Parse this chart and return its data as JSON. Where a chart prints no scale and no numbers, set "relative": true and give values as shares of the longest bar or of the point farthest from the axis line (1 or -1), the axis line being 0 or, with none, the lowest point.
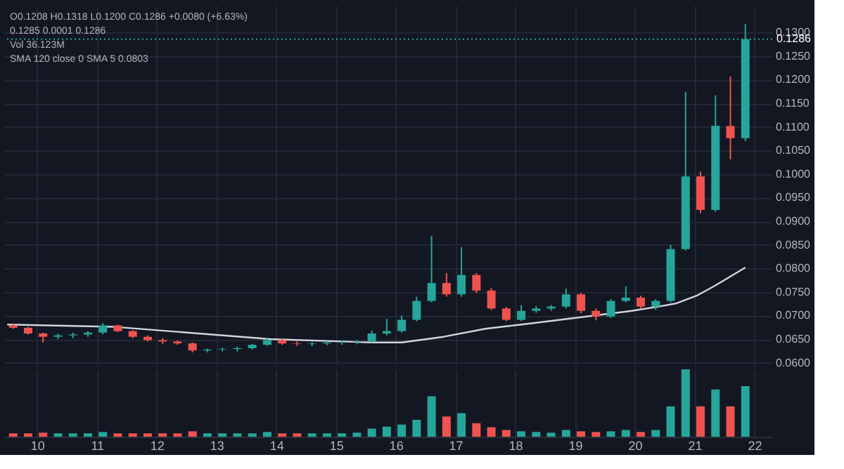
{
  "chart_data": [
    {
      "type": "candlestick",
      "x": [
        9.6,
        9.85,
        10.1,
        10.35,
        10.6,
        10.85,
        11.1,
        11.35,
        11.6,
        11.85,
        12.1,
        12.35,
        12.6,
        12.85,
        13.1,
        13.35,
        13.6,
        13.85,
        14.1,
        14.35,
        14.6,
        14.85,
        15.1,
        15.35,
        15.6,
        15.85,
        16.1,
        16.35,
        16.6,
        16.85,
        17.1,
        17.35,
        17.6,
        17.85,
        18.1,
        18.35,
        18.6,
        18.85,
        19.1,
        19.35,
        19.6,
        19.85,
        20.1,
        20.35,
        20.6,
        20.85,
        21.1,
        21.35,
        21.6,
        21.85
      ],
      "ohlc": [
        [
          0.0679,
          0.0683,
          0.0672,
          0.0674
        ],
        [
          0.0674,
          0.0676,
          0.066,
          0.0662
        ],
        [
          0.0662,
          0.0664,
          0.0643,
          0.0655
        ],
        [
          0.0655,
          0.0662,
          0.065,
          0.0658
        ],
        [
          0.0658,
          0.0664,
          0.0652,
          0.066
        ],
        [
          0.066,
          0.0667,
          0.0655,
          0.0664
        ],
        [
          0.0664,
          0.0684,
          0.066,
          0.0679
        ],
        [
          0.0679,
          0.0681,
          0.0665,
          0.0667
        ],
        [
          0.0667,
          0.0669,
          0.0652,
          0.0655
        ],
        [
          0.0655,
          0.0658,
          0.0645,
          0.0648
        ],
        [
          0.0648,
          0.0652,
          0.064,
          0.0645
        ],
        [
          0.0645,
          0.0647,
          0.0638,
          0.0641
        ],
        [
          0.0641,
          0.0643,
          0.0622,
          0.0626
        ],
        [
          0.0626,
          0.063,
          0.0622,
          0.0628
        ],
        [
          0.0628,
          0.0632,
          0.0624,
          0.0629
        ],
        [
          0.0629,
          0.0634,
          0.0624,
          0.0631
        ],
        [
          0.0631,
          0.064,
          0.0628,
          0.0638
        ],
        [
          0.0638,
          0.0653,
          0.0636,
          0.0648
        ],
        [
          0.0648,
          0.065,
          0.0638,
          0.0641
        ],
        [
          0.0641,
          0.0645,
          0.0636,
          0.064
        ],
        [
          0.064,
          0.0644,
          0.0635,
          0.0641
        ],
        [
          0.0641,
          0.0646,
          0.0637,
          0.0643
        ],
        [
          0.0643,
          0.0647,
          0.0638,
          0.0644
        ],
        [
          0.0644,
          0.0648,
          0.0639,
          0.0645
        ],
        [
          0.0645,
          0.0668,
          0.0643,
          0.0662
        ],
        [
          0.0662,
          0.0693,
          0.0658,
          0.0667
        ],
        [
          0.0667,
          0.07,
          0.0664,
          0.0691
        ],
        [
          0.0691,
          0.074,
          0.0688,
          0.0731
        ],
        [
          0.0731,
          0.0869,
          0.0728,
          0.0769
        ],
        [
          0.0769,
          0.079,
          0.074,
          0.0745
        ],
        [
          0.0745,
          0.0845,
          0.074,
          0.0786
        ],
        [
          0.0786,
          0.079,
          0.0748,
          0.0753
        ],
        [
          0.0753,
          0.0758,
          0.0712,
          0.0715
        ],
        [
          0.0715,
          0.0718,
          0.0688,
          0.0691
        ],
        [
          0.0691,
          0.0722,
          0.0688,
          0.071
        ],
        [
          0.071,
          0.072,
          0.0706,
          0.0715
        ],
        [
          0.0715,
          0.0722,
          0.071,
          0.0719
        ],
        [
          0.0719,
          0.0757,
          0.0715,
          0.0745
        ],
        [
          0.0745,
          0.0748,
          0.0705,
          0.071
        ],
        [
          0.071,
          0.0715,
          0.069,
          0.0698
        ],
        [
          0.0698,
          0.0735,
          0.0695,
          0.0731
        ],
        [
          0.0731,
          0.0762,
          0.0728,
          0.0738
        ],
        [
          0.0738,
          0.0742,
          0.0715,
          0.0719
        ],
        [
          0.0719,
          0.0735,
          0.0712,
          0.0731
        ],
        [
          0.0731,
          0.085,
          0.0728,
          0.0841
        ],
        [
          0.0841,
          0.1174,
          0.0838,
          0.0995
        ],
        [
          0.0995,
          0.1005,
          0.0917,
          0.0924
        ],
        [
          0.0924,
          0.1167,
          0.092,
          0.1102
        ],
        [
          0.1102,
          0.1207,
          0.1031,
          0.1076
        ],
        [
          0.1076,
          0.1318,
          0.107,
          0.1286
        ]
      ],
      "colors": [
        "#ef5350",
        "#ef5350",
        "#ef5350",
        "#26a69a",
        "#26a69a",
        "#26a69a",
        "#26a69a",
        "#ef5350",
        "#ef5350",
        "#ef5350",
        "#ef5350",
        "#ef5350",
        "#ef5350",
        "#26a69a",
        "#26a69a",
        "#26a69a",
        "#26a69a",
        "#26a69a",
        "#ef5350",
        "#ef5350",
        "#26a69a",
        "#26a69a",
        "#26a69a",
        "#26a69a",
        "#26a69a",
        "#26a69a",
        "#26a69a",
        "#26a69a",
        "#26a69a",
        "#ef5350",
        "#26a69a",
        "#ef5350",
        "#ef5350",
        "#ef5350",
        "#26a69a",
        "#26a69a",
        "#26a69a",
        "#26a69a",
        "#ef5350",
        "#ef5350",
        "#26a69a",
        "#26a69a",
        "#ef5350",
        "#26a69a",
        "#26a69a",
        "#26a69a",
        "#ef5350",
        "#26a69a",
        "#ef5350",
        "#26a69a"
      ],
      "series": [
        {
          "type": "line",
          "color": "#d1d4dc",
          "x": [
            9.5,
            11.3,
            13.9,
            15.6,
            16.1,
            16.8,
            17.5,
            18.3,
            19.2,
            19.95,
            20.4,
            20.7,
            21.05,
            21.35,
            21.85
          ],
          "values": [
            0.0681,
            0.0676,
            0.065,
            0.0643,
            0.0643,
            0.0655,
            0.0672,
            0.0684,
            0.0698,
            0.071,
            0.0719,
            0.0726,
            0.0743,
            0.0764,
            0.0802
          ]
        }
      ],
      "xlim": [
        9.45,
        22.3
      ],
      "xticks": [
        10,
        11,
        12,
        13,
        14,
        15,
        16,
        17,
        18,
        19,
        20,
        21,
        22
      ],
      "ylim": [
        0.0595,
        0.1357
      ],
      "yticks": [
        {
          "value": 0.06,
          "label": "0.0600"
        },
        {
          "value": 0.065,
          "label": "0.0650"
        },
        {
          "value": 0.07,
          "label": "0.0700"
        },
        {
          "value": 0.075,
          "label": "0.0750"
        },
        {
          "value": 0.08,
          "label": "0.0800"
        },
        {
          "value": 0.085,
          "label": "0.0850"
        },
        {
          "value": 0.09,
          "label": "0.0900"
        },
        {
          "value": 0.095,
          "label": "0.0950"
        },
        {
          "value": 0.1,
          "label": "0.1000"
        },
        {
          "value": 0.105,
          "label": "0.1050"
        },
        {
          "value": 0.11,
          "label": "0.1100"
        },
        {
          "value": 0.115,
          "label": "0.1150"
        },
        {
          "value": 0.12,
          "label": "0.1200"
        },
        {
          "value": 0.125,
          "label": "0.1250"
        },
        {
          "value": 0.13,
          "label": "0.1300"
        }
      ],
      "ref_lines": [
        {
          "axis": "y",
          "value": 0.1286,
          "label": "0.1286",
          "color": "#26a69a",
          "line_style": "dotted"
        }
      ],
      "annotations": [
        "O0.1208 H0.1318 L0.1200 C0.1286 +0.0080 (+6.63%)",
        "0.1285  0.0001  0.1286",
        "Vol 36.123M",
        "SMA 120 close 0 SMA 5 0.0803"
      ],
      "grid": true,
      "tick_labels": "y"
    },
    {
      "type": "bar",
      "relative": true,
      "x": [
        9.6,
        9.85,
        10.1,
        10.35,
        10.6,
        10.85,
        11.1,
        11.35,
        11.6,
        11.85,
        12.1,
        12.35,
        12.6,
        12.85,
        13.1,
        13.35,
        13.6,
        13.85,
        14.1,
        14.35,
        14.6,
        14.85,
        15.1,
        15.35,
        15.6,
        15.85,
        16.1,
        16.35,
        16.6,
        16.85,
        17.1,
        17.35,
        17.6,
        17.85,
        18.1,
        18.35,
        18.6,
        18.85,
        19.1,
        19.35,
        19.6,
        19.85,
        20.1,
        20.35,
        20.6,
        20.85,
        21.1,
        21.35,
        21.6,
        21.85
      ],
      "values": [
        0.05,
        0.05,
        0.06,
        0.05,
        0.05,
        0.05,
        0.07,
        0.05,
        0.05,
        0.05,
        0.05,
        0.05,
        0.08,
        0.05,
        0.05,
        0.05,
        0.05,
        0.07,
        0.05,
        0.05,
        0.05,
        0.05,
        0.05,
        0.06,
        0.12,
        0.15,
        0.18,
        0.25,
        0.6,
        0.3,
        0.35,
        0.2,
        0.14,
        0.1,
        0.08,
        0.07,
        0.06,
        0.1,
        0.08,
        0.07,
        0.08,
        0.1,
        0.07,
        0.1,
        0.45,
        1.0,
        0.45,
        0.7,
        0.45,
        0.75
      ],
      "colors": [
        "#ef5350",
        "#ef5350",
        "#ef5350",
        "#26a69a",
        "#26a69a",
        "#26a69a",
        "#26a69a",
        "#ef5350",
        "#ef5350",
        "#ef5350",
        "#ef5350",
        "#ef5350",
        "#ef5350",
        "#26a69a",
        "#26a69a",
        "#26a69a",
        "#26a69a",
        "#26a69a",
        "#ef5350",
        "#ef5350",
        "#26a69a",
        "#26a69a",
        "#26a69a",
        "#26a69a",
        "#26a69a",
        "#26a69a",
        "#26a69a",
        "#26a69a",
        "#26a69a",
        "#ef5350",
        "#26a69a",
        "#ef5350",
        "#ef5350",
        "#ef5350",
        "#26a69a",
        "#26a69a",
        "#26a69a",
        "#26a69a",
        "#ef5350",
        "#ef5350",
        "#26a69a",
        "#26a69a",
        "#ef5350",
        "#26a69a",
        "#26a69a",
        "#26a69a",
        "#ef5350",
        "#26a69a",
        "#ef5350",
        "#26a69a"
      ],
      "xlim": [
        9.45,
        22.3
      ],
      "xticks": [
        10,
        11,
        12,
        13,
        14,
        15,
        16,
        17,
        18,
        19,
        20,
        21,
        22
      ],
      "grid": "x",
      "tick_labels": "x"
    }
  ]
}
